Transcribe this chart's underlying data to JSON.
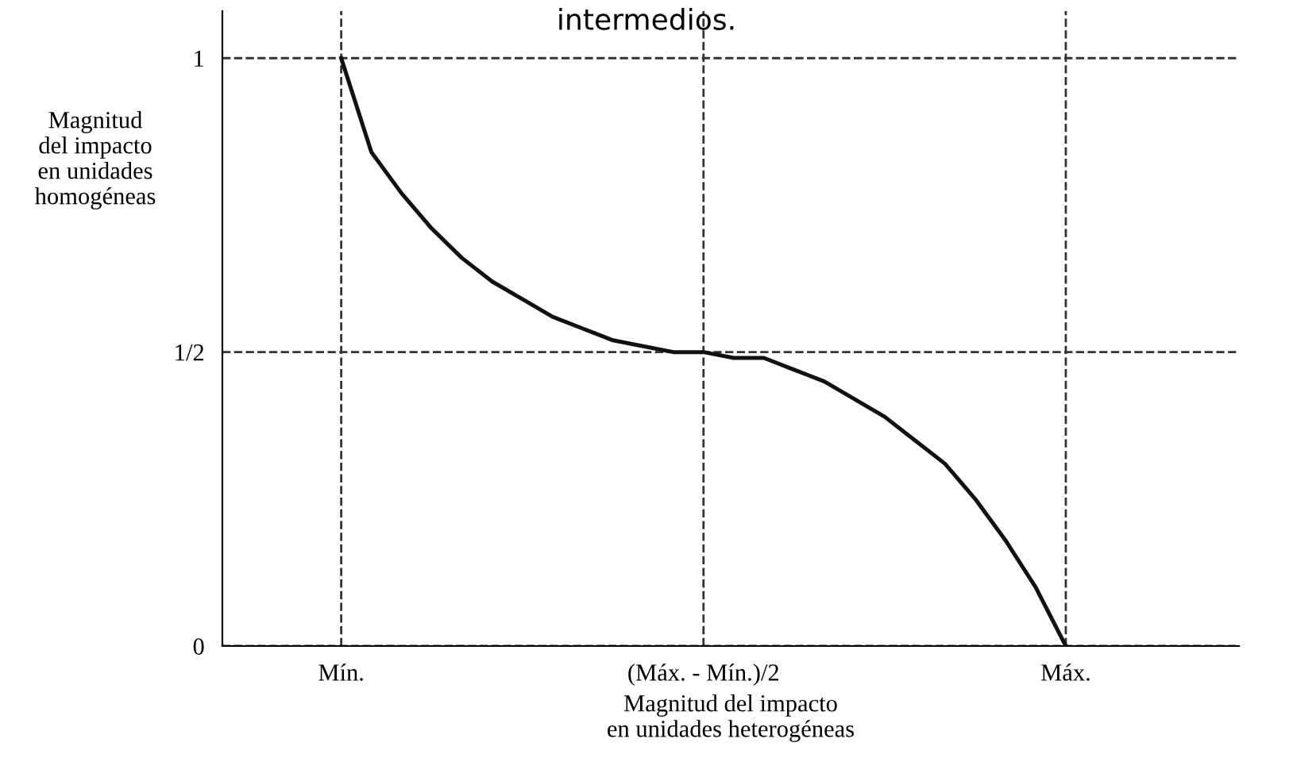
{
  "chart_data": {
    "type": "line",
    "title": "intermedios.",
    "xlabel": "Magnitud del impacto\nen unidades heterogéneas",
    "ylabel": "Magnitud\ndel impacto\nen unidades\nhomogéneas",
    "categories": [
      "Mín.",
      null,
      null,
      null,
      null,
      null,
      null,
      null,
      null,
      null,
      null,
      null,
      "(Máx. - Mín.)/2",
      null,
      null,
      null,
      null,
      null,
      null,
      null,
      null,
      null,
      null,
      null,
      "Máx."
    ],
    "series": [
      {
        "color": "#111111",
        "values": [
          1,
          0.84,
          0.77,
          0.71,
          0.66,
          0.62,
          0.59,
          0.56,
          0.54,
          0.52,
          0.51,
          0.5,
          0.5,
          0.49,
          0.49,
          0.47,
          0.45,
          0.42,
          0.39,
          0.35,
          0.31,
          0.25,
          0.18,
          0.1,
          0
        ]
      }
    ],
    "ylim": [
      0,
      1.08
    ],
    "yticks": [
      0,
      {
        "value": 0.5,
        "label": "1/2"
      },
      1
    ],
    "grid": true,
    "legend": false,
    "marker": "none",
    "line_style": "solid"
  }
}
